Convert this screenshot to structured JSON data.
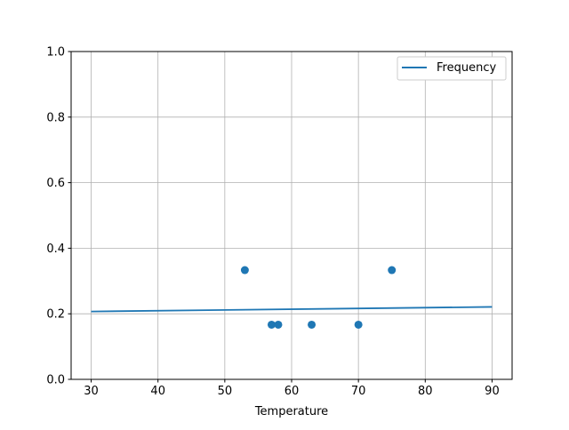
{
  "chart_data": {
    "type": "scatter",
    "title": "",
    "xlabel": "Temperature",
    "ylabel": "",
    "xlim": [
      27,
      93
    ],
    "ylim": [
      0,
      1.0
    ],
    "xticks": [
      30,
      40,
      50,
      60,
      70,
      80,
      90
    ],
    "yticks": [
      0.0,
      0.2,
      0.4,
      0.6,
      0.8,
      1.0
    ],
    "xtick_labels": [
      "30",
      "40",
      "50",
      "60",
      "70",
      "80",
      "90"
    ],
    "ytick_labels": [
      "0.0",
      "0.2",
      "0.4",
      "0.6",
      "0.8",
      "1.0"
    ],
    "grid": true,
    "legend_position": "top-right",
    "series": [
      {
        "name": "Frequency",
        "kind": "line",
        "color": "#1f77b4",
        "x": [
          30,
          90
        ],
        "y": [
          0.207,
          0.221
        ]
      },
      {
        "kind": "scatter",
        "color": "#1f77b4",
        "x": [
          53,
          57,
          58,
          63,
          70,
          75
        ],
        "y": [
          0.3333,
          0.1667,
          0.1667,
          0.1667,
          0.1667,
          0.3333
        ]
      }
    ]
  }
}
